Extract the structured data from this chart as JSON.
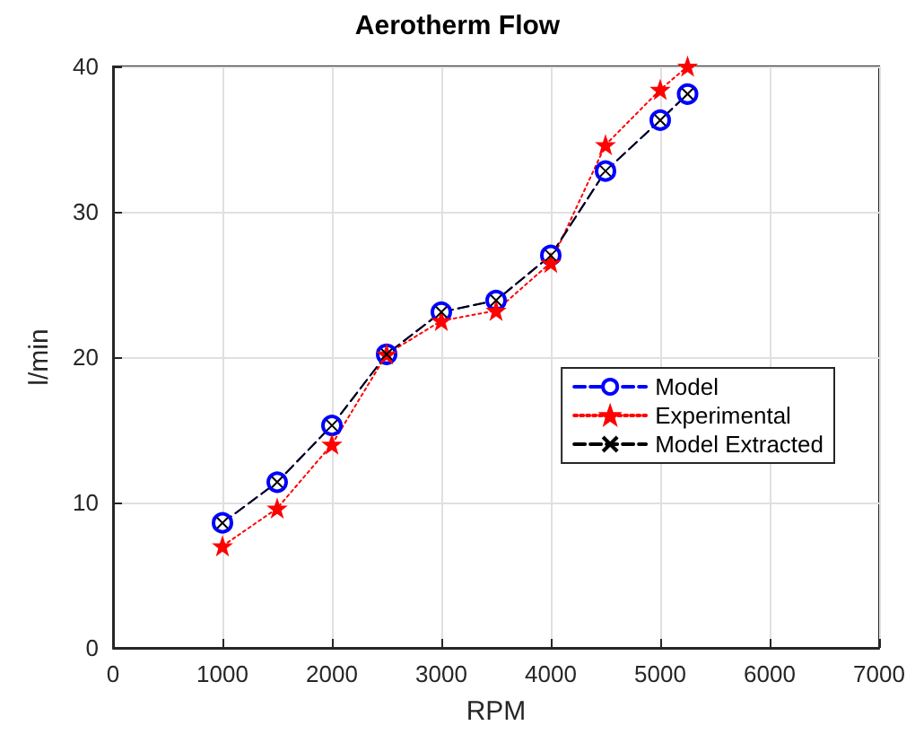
{
  "chart_data": {
    "type": "line",
    "title": "Aerotherm Flow",
    "xlabel": "RPM",
    "ylabel": "l/min",
    "x": [
      1000,
      1500,
      2000,
      2500,
      3000,
      3500,
      4000,
      4500,
      5000,
      5250
    ],
    "series": [
      {
        "name": "Model",
        "color": "#0000ff",
        "marker": "circle",
        "line_style": "dashed",
        "values": [
          8.6,
          11.4,
          15.3,
          20.2,
          23.1,
          23.9,
          27.0,
          32.8,
          36.3,
          38.1
        ]
      },
      {
        "name": "Experimental",
        "color": "#ff0000",
        "marker": "star",
        "line_style": "dotted",
        "values": [
          7.0,
          9.6,
          14.0,
          20.2,
          22.5,
          23.2,
          26.5,
          34.6,
          38.4,
          40.0
        ]
      },
      {
        "name": "Model Extracted",
        "color": "#000000",
        "marker": "cross",
        "line_style": "dashed",
        "values": [
          8.6,
          11.4,
          15.3,
          20.2,
          23.1,
          23.9,
          27.0,
          32.8,
          36.3,
          38.1
        ]
      }
    ],
    "xlim": [
      0,
      7000
    ],
    "xticks": [
      0,
      1000,
      2000,
      3000,
      4000,
      5000,
      6000,
      7000
    ],
    "ylim": [
      0,
      40
    ],
    "yticks": [
      0,
      10,
      20,
      30,
      40
    ],
    "grid": true,
    "legend": "right"
  }
}
